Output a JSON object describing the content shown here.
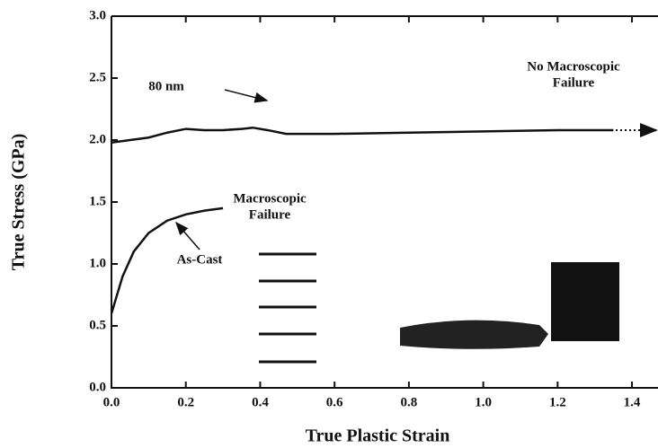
{
  "chart_data": {
    "type": "line",
    "xlabel": "True Plastic Strain",
    "ylabel": "True Stress (GPa)",
    "xlim": [
      0,
      1.47
    ],
    "ylim": [
      0,
      3
    ],
    "xticks": [
      {
        "value": 0,
        "label": "0.0"
      },
      0.2,
      0.4,
      0.6,
      0.8,
      {
        "value": 1,
        "label": "1.0"
      },
      1.2,
      1.4
    ],
    "yticks": [
      {
        "value": 0,
        "label": "0.0"
      },
      0.5,
      {
        "value": 1,
        "label": "1.0"
      },
      1.5,
      {
        "value": 2,
        "label": "2.0"
      },
      2.5,
      {
        "value": 3,
        "label": "3.0"
      }
    ],
    "series": [
      {
        "name": "80 nm",
        "color": "#111111",
        "x": [
          0,
          0.05,
          0.1,
          0.15,
          0.2,
          0.25,
          0.3,
          0.35,
          0.38,
          0.42,
          0.47,
          0.6,
          0.8,
          1.0,
          1.2,
          1.35
        ],
        "values": [
          1.98,
          2.0,
          2.02,
          2.06,
          2.09,
          2.08,
          2.08,
          2.09,
          2.1,
          2.08,
          2.05,
          2.05,
          2.06,
          2.07,
          2.08,
          2.08
        ]
      },
      {
        "name": "As-Cast",
        "color": "#111111",
        "x": [
          0,
          0.03,
          0.06,
          0.1,
          0.15,
          0.2,
          0.25,
          0.3
        ],
        "values": [
          0.6,
          0.9,
          1.1,
          1.25,
          1.35,
          1.4,
          1.43,
          1.45
        ]
      }
    ],
    "annotations": [
      {
        "lines": [
          "No Macroscopic",
          "Failure"
        ]
      },
      {
        "lines": [
          "Macroscopic",
          "Failure"
        ]
      }
    ]
  }
}
